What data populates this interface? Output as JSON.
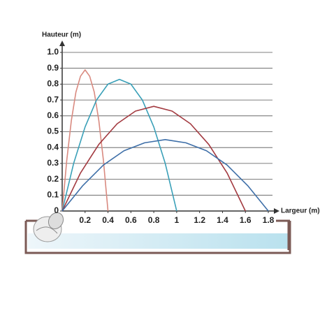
{
  "chart_data": {
    "type": "line",
    "y_label": "Hauteur (m)",
    "x_label": "Largeur (m)",
    "xlim": [
      0,
      1.8
    ],
    "ylim": [
      0,
      1
    ],
    "xticks": [
      0.2,
      0.4,
      0.6,
      0.8,
      1,
      1.2,
      1.4,
      1.6,
      1.8
    ],
    "yticks": [
      0,
      0.1,
      0.2,
      0.3,
      0.4,
      0.5,
      0.6,
      0.7,
      0.8,
      0.9,
      {
        "value": 1,
        "label": "1.0"
      }
    ],
    "grid": true,
    "series": [
      {
        "color": "#d98a80",
        "x": [
          0,
          0.04,
          0.08,
          0.12,
          0.16,
          0.2,
          0.24,
          0.28,
          0.32,
          0.36,
          0.4
        ],
        "values": [
          0,
          0.32,
          0.57,
          0.75,
          0.85,
          0.89,
          0.85,
          0.75,
          0.57,
          0.32,
          0
        ]
      },
      {
        "color": "#3aa0b8",
        "x": [
          0,
          0.1,
          0.2,
          0.3,
          0.4,
          0.5,
          0.6,
          0.7,
          0.8,
          0.9,
          1
        ],
        "values": [
          0,
          0.3,
          0.53,
          0.7,
          0.8,
          0.83,
          0.8,
          0.7,
          0.53,
          0.3,
          0
        ]
      },
      {
        "color": "#a33a40",
        "x": [
          0,
          0.16,
          0.32,
          0.48,
          0.64,
          0.8,
          0.96,
          1.12,
          1.28,
          1.44,
          1.6
        ],
        "values": [
          0,
          0.24,
          0.42,
          0.55,
          0.63,
          0.66,
          0.63,
          0.55,
          0.42,
          0.24,
          0
        ]
      },
      {
        "color": "#3e6fa8",
        "x": [
          0,
          0.18,
          0.36,
          0.54,
          0.72,
          0.9,
          1.08,
          1.26,
          1.44,
          1.62,
          1.8
        ],
        "values": [
          0,
          0.16,
          0.29,
          0.38,
          0.43,
          0.45,
          0.43,
          0.38,
          0.29,
          0.16,
          0
        ]
      }
    ]
  }
}
